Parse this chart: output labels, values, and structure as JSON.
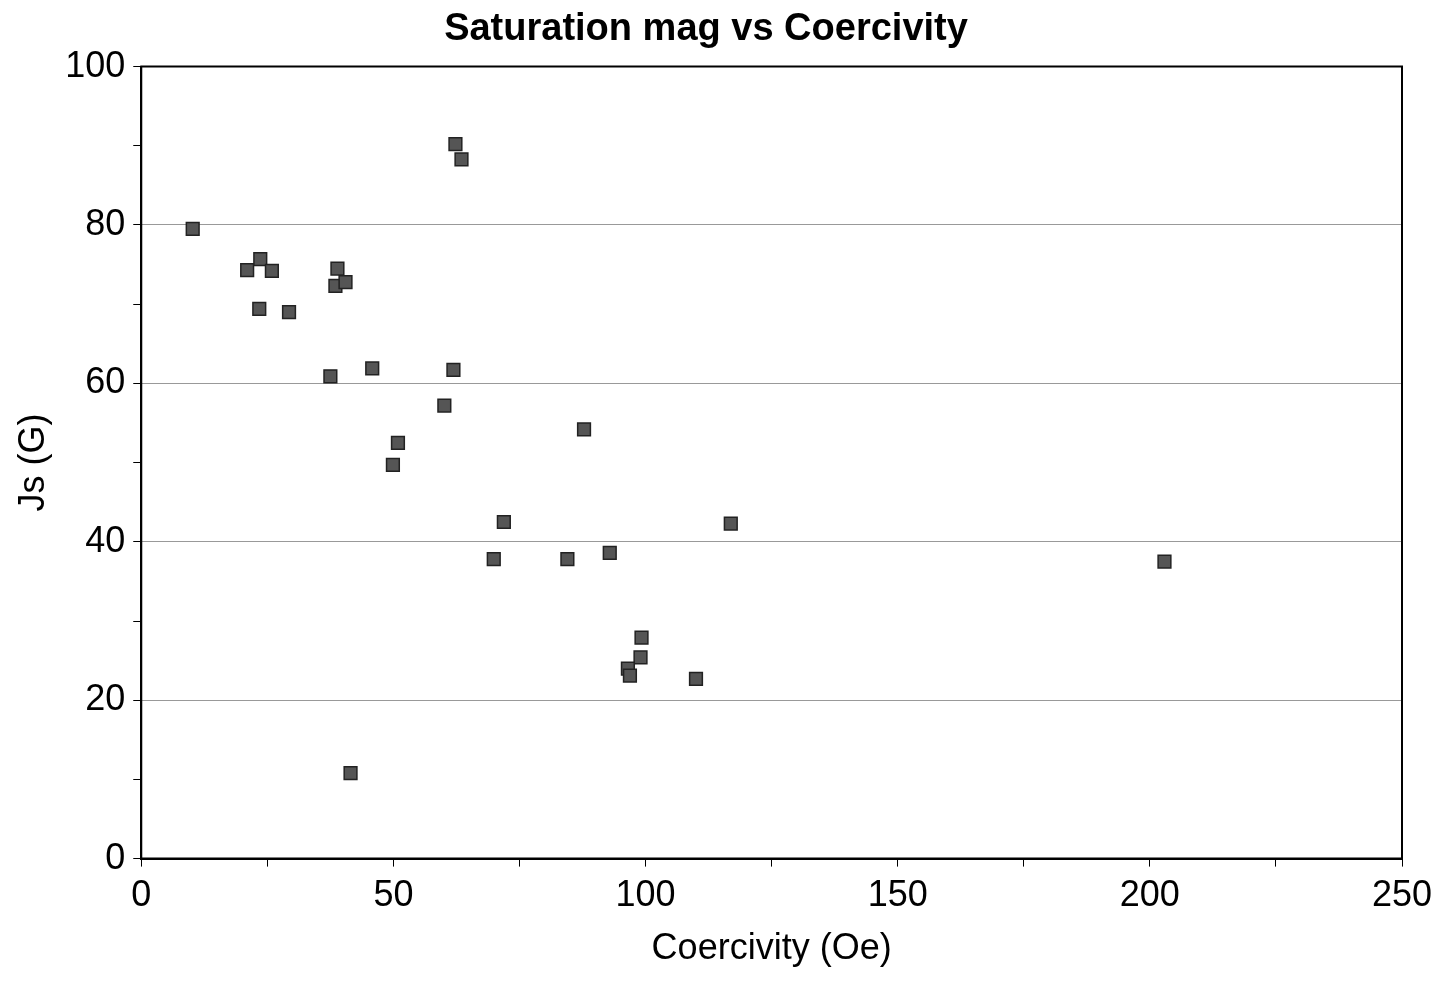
{
  "chart_data": {
    "type": "scatter",
    "title": "Saturation mag vs Coercivity",
    "xlabel": "Coercivity (Oe)",
    "ylabel": "Js (G)",
    "x": [
      10.2,
      21,
      23.6,
      25.9,
      23.4,
      29.3,
      38.9,
      38.5,
      40.5,
      37.5,
      45.8,
      50.9,
      49.9,
      41.5,
      62.3,
      63.5,
      61.9,
      60.1,
      87.8,
      71.9,
      69.9,
      84.5,
      92.9,
      116.9,
      202.9,
      99.2,
      99,
      96.5,
      96.9,
      110
    ],
    "values": [
      79.5,
      74.3,
      75.7,
      74.2,
      69.4,
      69,
      74.5,
      72.3,
      72.8,
      60.9,
      61.9,
      52.5,
      49.7,
      10.8,
      90.2,
      88.3,
      61.7,
      57.2,
      54.2,
      42.5,
      37.8,
      37.8,
      38.6,
      42.3,
      37.5,
      27.9,
      25.4,
      24,
      23.1,
      22.7
    ],
    "color": "#555555",
    "marker": "square",
    "grid": "y",
    "legend": false,
    "xlim": [
      0,
      250
    ],
    "xticks": [
      0,
      {
        "value": 25,
        "label": null
      },
      50,
      {
        "value": 75,
        "label": null
      },
      100,
      {
        "value": 125,
        "label": null
      },
      150,
      {
        "value": 175,
        "label": null
      },
      200,
      {
        "value": 225,
        "label": null
      },
      250
    ],
    "ylim": [
      0,
      100
    ],
    "yticks": [
      0,
      {
        "value": 10,
        "label": null
      },
      20,
      {
        "value": 30,
        "label": null
      },
      40,
      {
        "value": 50,
        "label": null
      },
      60,
      {
        "value": 70,
        "label": null
      },
      80,
      {
        "value": 90,
        "label": null
      },
      100
    ]
  }
}
